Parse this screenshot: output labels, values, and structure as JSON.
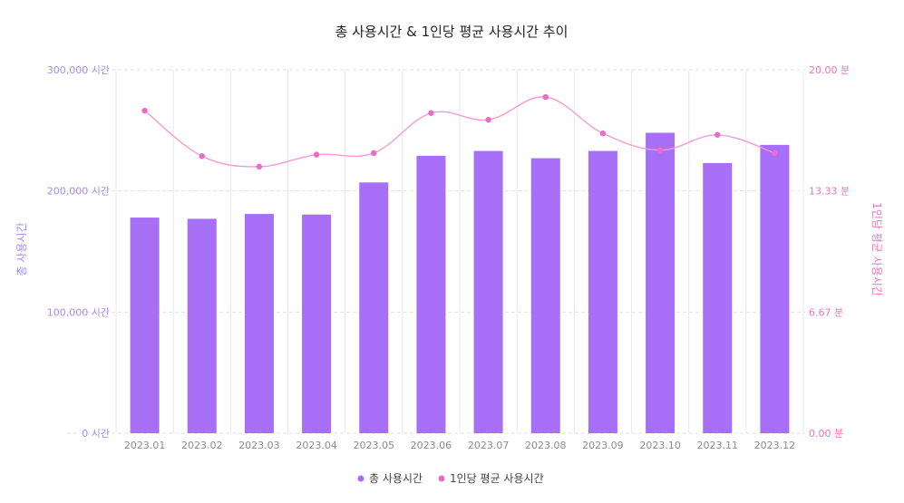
{
  "colors": {
    "bar": "#a66ff6",
    "line": "#f59ad6",
    "point": "#ee6ac7",
    "grid": "#e2e2e2",
    "axis_left": "#a78bfa",
    "axis_right": "#f472b6"
  },
  "chart_data": {
    "type": "bar",
    "title": "총 사용시간 & 1인당 평균 사용시간 추이",
    "categories": [
      "2023.01",
      "2023.02",
      "2023.03",
      "2023.04",
      "2023.05",
      "2023.06",
      "2023.07",
      "2023.08",
      "2023.09",
      "2023.10",
      "2023.11",
      "2023.12"
    ],
    "series": [
      {
        "name": "총 사용시간",
        "type": "bar",
        "axis": "left",
        "values": [
          178000,
          177000,
          181000,
          180500,
          207000,
          229000,
          233000,
          227000,
          233000,
          248000,
          223000,
          238000
        ]
      },
      {
        "name": "1인당 평균 사용시간",
        "type": "line",
        "axis": "right",
        "values": [
          17.75,
          15.25,
          14.67,
          15.33,
          15.42,
          17.62,
          17.25,
          18.5,
          16.5,
          15.58,
          16.42,
          15.42
        ]
      }
    ],
    "y_left": {
      "label": "총 사용시간",
      "range": [
        0,
        300000
      ],
      "ticks": [
        "0 시간",
        "100,000 시간",
        "200,000 시간",
        "300,000 시간"
      ]
    },
    "y_right": {
      "label": "1인당 평균 사용시간",
      "range": [
        0,
        20
      ],
      "ticks": [
        "0.00 분",
        "6.67 분",
        "13.33 분",
        "20.00 분"
      ]
    },
    "legend": {
      "position": "bottom",
      "items": [
        "총 사용시간",
        "1인당 평균 사용시간"
      ]
    },
    "grid": true
  }
}
